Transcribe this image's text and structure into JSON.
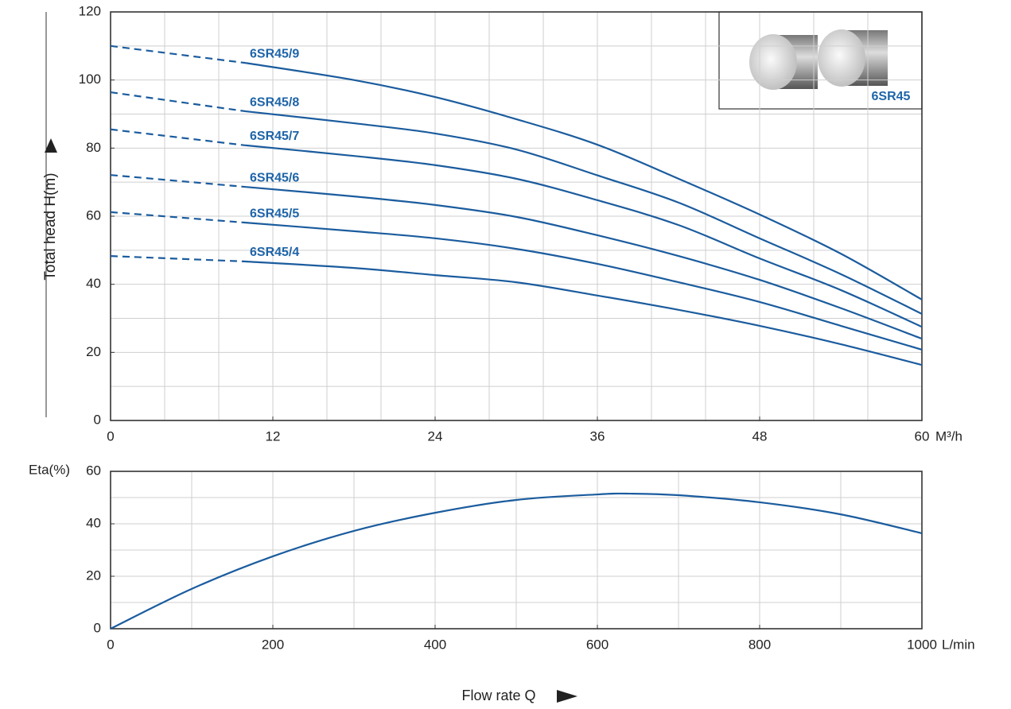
{
  "chart_data": [
    {
      "type": "line",
      "ylabel": "Total head H(m)",
      "x_unit": "M³/h",
      "inset_label": "6SR45",
      "x": [
        0,
        10,
        18,
        24,
        30,
        36,
        42,
        48,
        54,
        60
      ],
      "dash_until_index": 1,
      "series": [
        {
          "name": "6SR45/9",
          "color": "#1b5c9e",
          "values": [
            110,
            105,
            100,
            95,
            88.5,
            81,
            71,
            60.5,
            49,
            35.5
          ]
        },
        {
          "name": "6SR45/8",
          "color": "#1b5c9e",
          "values": [
            96.4,
            90.8,
            87.3,
            84.3,
            79.6,
            72,
            64,
            53.5,
            43,
            31.3
          ]
        },
        {
          "name": "6SR45/7",
          "color": "#1b5c9e",
          "values": [
            85.5,
            80.8,
            77.7,
            75,
            71,
            64.7,
            57.4,
            47.6,
            38.3,
            27.5
          ]
        },
        {
          "name": "6SR45/6",
          "color": "#1b5c9e",
          "values": [
            72.1,
            68.6,
            65.8,
            63.3,
            59.8,
            54.4,
            48.3,
            41.3,
            33,
            24
          ]
        },
        {
          "name": "6SR45/5",
          "color": "#1b5c9e",
          "values": [
            61.2,
            58.1,
            55.6,
            53.5,
            50.4,
            46,
            40.6,
            34.8,
            27.8,
            20.8
          ]
        },
        {
          "name": "6SR45/4",
          "color": "#1b5c9e",
          "values": [
            48.3,
            46.7,
            44.8,
            42.7,
            40.6,
            36.7,
            32.5,
            27.8,
            22.4,
            16.3
          ]
        }
      ],
      "xlim": [
        0,
        60
      ],
      "ylim": [
        0,
        120
      ],
      "xticks": [
        0,
        12,
        24,
        36,
        48,
        60
      ],
      "yticks": [
        0,
        20,
        40,
        60,
        80,
        100,
        120
      ],
      "xgrid": [
        4,
        8,
        12,
        16,
        20,
        24,
        28,
        32,
        36,
        40,
        44,
        48,
        52,
        56
      ],
      "ygrid": [
        10,
        20,
        30,
        40,
        50,
        60,
        70,
        80,
        90,
        100,
        110
      ],
      "grid": true
    },
    {
      "type": "line",
      "ylabel": "Eta(%)",
      "x_unit": "L/min",
      "xlabel": "Flow rate Q",
      "x": [
        0,
        100,
        200,
        300,
        400,
        500,
        600,
        640,
        700,
        800,
        900,
        1000
      ],
      "series": [
        {
          "color": "#1b5c9e",
          "values": [
            0,
            15.2,
            27.6,
            37.3,
            44.2,
            49.1,
            51.2,
            51.5,
            50.9,
            48.2,
            43.6,
            36.4
          ]
        }
      ],
      "xlim": [
        0,
        1000
      ],
      "ylim": [
        0,
        60
      ],
      "xticks": [
        0,
        200,
        400,
        600,
        800,
        1000
      ],
      "yticks": [
        0,
        20,
        40,
        60
      ],
      "xgrid": [
        100,
        200,
        300,
        400,
        500,
        600,
        700,
        800,
        900
      ],
      "ygrid": [
        10,
        20,
        30,
        40,
        50
      ],
      "grid": true
    }
  ]
}
